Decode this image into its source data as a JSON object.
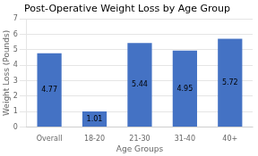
{
  "chart_data": {
    "type": "bar",
    "title": "Post-Operative Weight Loss by Age Group",
    "categories": [
      "Overall",
      "18-20",
      "21-30",
      "31-40",
      "40+"
    ],
    "values": [
      4.77,
      1.01,
      5.44,
      4.95,
      5.72
    ],
    "color": "#4472C4",
    "xlabel": "Age Groups",
    "ylabel": "Weight Loss (Pounds)",
    "ylim": [
      0,
      7
    ],
    "yticks": [
      0,
      1,
      2,
      3,
      4,
      5,
      6,
      7
    ],
    "grid": true,
    "data_labels": true
  }
}
